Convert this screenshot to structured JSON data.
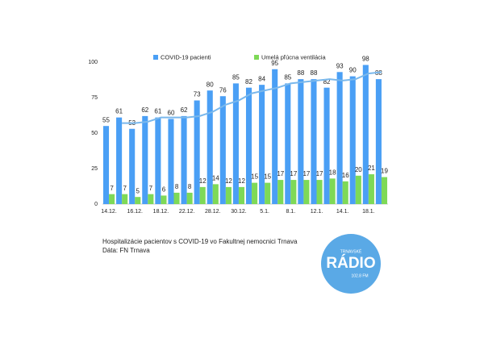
{
  "chart_data": {
    "type": "bar",
    "categories": [
      "14.12.",
      null,
      "16.12.",
      null,
      "18.12.",
      null,
      "22.12.",
      null,
      "28.12.",
      null,
      "30.12.",
      null,
      "5.1.",
      null,
      "8.1.",
      null,
      "12.1.",
      null,
      "14.1.",
      null,
      "18.1.",
      null
    ],
    "series": [
      {
        "name": "COVID-19 pacienti",
        "color": "#4a9ff5",
        "values": [
          55,
          61,
          53,
          62,
          61,
          60,
          62,
          73,
          80,
          76,
          85,
          82,
          84,
          95,
          85,
          88,
          88,
          82,
          93,
          90,
          98,
          88
        ]
      },
      {
        "name": "Umelá pľúcna ventilácia",
        "color": "#7ed957",
        "values": [
          7,
          7,
          5,
          7,
          6,
          8,
          8,
          12,
          14,
          12,
          12,
          15,
          15,
          17,
          17,
          17,
          17,
          18,
          16,
          20,
          21,
          19
        ]
      },
      {
        "type": "line",
        "color": "#7ab8ec",
        "values": [
          null,
          57,
          57,
          58,
          61,
          61,
          61,
          62,
          65,
          70,
          73,
          78,
          80,
          82,
          85,
          86,
          87,
          88,
          87,
          88,
          92,
          93
        ]
      }
    ],
    "ylim": [
      0,
      100
    ],
    "yticks": [
      0,
      25,
      50,
      75,
      100
    ],
    "grid": false,
    "legend": "top",
    "caption": [
      "Hospitalizácie pacientov s COVID-19 vo Fakultnej nemocnici Trnava",
      "Dáta: FN Trnava"
    ],
    "logo": {
      "top": "TRNAVSKÉ",
      "main": "RÁDIO",
      "bottom": "102.8 FM"
    }
  }
}
